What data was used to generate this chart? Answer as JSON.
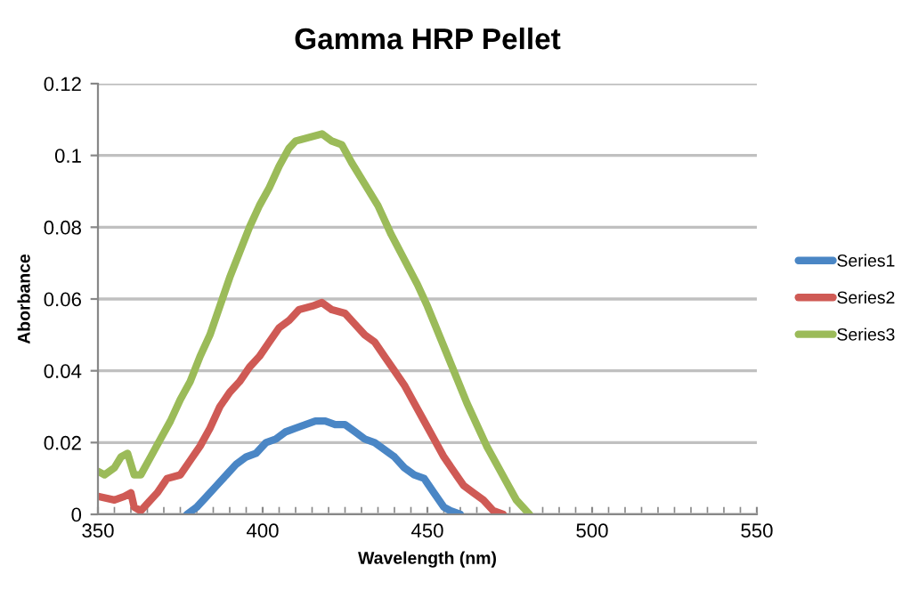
{
  "chart_data": {
    "type": "line",
    "title": "Gamma HRP Pellet",
    "xlabel": "Wavelength (nm)",
    "ylabel": "Aborbance",
    "xlim": [
      350,
      550
    ],
    "xticks": [
      350,
      400,
      450,
      500,
      550
    ],
    "ylim": [
      0,
      0.12
    ],
    "yticks": [
      0,
      0.02,
      0.04,
      0.06,
      0.08,
      0.1,
      0.12
    ],
    "grid": "y",
    "legend": "right",
    "line_style": "solid",
    "marker": "none",
    "series": [
      {
        "name": "Series1",
        "color": "#4a86c5",
        "x": [
          377,
          380,
          383,
          386,
          389,
          392,
          395,
          398,
          401,
          404,
          407,
          410,
          413,
          416,
          419,
          422,
          425,
          428,
          431,
          434,
          437,
          440,
          443,
          446,
          449,
          452,
          455,
          457,
          460
        ],
        "values": [
          0,
          0.002,
          0.005,
          0.008,
          0.011,
          0.014,
          0.016,
          0.017,
          0.02,
          0.021,
          0.023,
          0.024,
          0.025,
          0.026,
          0.026,
          0.025,
          0.025,
          0.023,
          0.021,
          0.02,
          0.018,
          0.016,
          0.013,
          0.011,
          0.01,
          0.006,
          0.002,
          0.001,
          0
        ]
      },
      {
        "name": "Series2",
        "color": "#cf5a55",
        "x": [
          350,
          355,
          358,
          360,
          361,
          363,
          365,
          368,
          371,
          375,
          378,
          381,
          384,
          387,
          390,
          393,
          396,
          399,
          402,
          405,
          408,
          411,
          415,
          418,
          421,
          425,
          428,
          431,
          434,
          437,
          440,
          443,
          446,
          449,
          452,
          455,
          458,
          461,
          464,
          467,
          470,
          473
        ],
        "values": [
          0.005,
          0.004,
          0.005,
          0.006,
          0.002,
          0.001,
          0.003,
          0.006,
          0.01,
          0.011,
          0.015,
          0.019,
          0.024,
          0.03,
          0.034,
          0.037,
          0.041,
          0.044,
          0.048,
          0.052,
          0.054,
          0.057,
          0.058,
          0.059,
          0.057,
          0.056,
          0.053,
          0.05,
          0.048,
          0.044,
          0.04,
          0.036,
          0.031,
          0.026,
          0.021,
          0.016,
          0.012,
          0.008,
          0.006,
          0.004,
          0.001,
          0
        ]
      },
      {
        "name": "Series3",
        "color": "#9bbb59",
        "x": [
          350,
          352,
          355,
          357,
          359,
          361,
          363,
          366,
          369,
          372,
          375,
          378,
          381,
          384,
          387,
          390,
          393,
          396,
          399,
          402,
          405,
          408,
          410,
          414,
          418,
          421,
          424,
          427,
          431,
          435,
          439,
          443,
          447,
          450,
          454,
          458,
          462,
          465,
          468,
          471,
          474,
          477,
          481
        ],
        "values": [
          0.012,
          0.011,
          0.013,
          0.016,
          0.017,
          0.011,
          0.011,
          0.016,
          0.021,
          0.026,
          0.032,
          0.037,
          0.044,
          0.05,
          0.058,
          0.066,
          0.073,
          0.08,
          0.086,
          0.091,
          0.097,
          0.102,
          0.104,
          0.105,
          0.106,
          0.104,
          0.103,
          0.098,
          0.092,
          0.086,
          0.078,
          0.071,
          0.064,
          0.058,
          0.049,
          0.04,
          0.031,
          0.025,
          0.019,
          0.014,
          0.009,
          0.004,
          0
        ]
      }
    ]
  }
}
